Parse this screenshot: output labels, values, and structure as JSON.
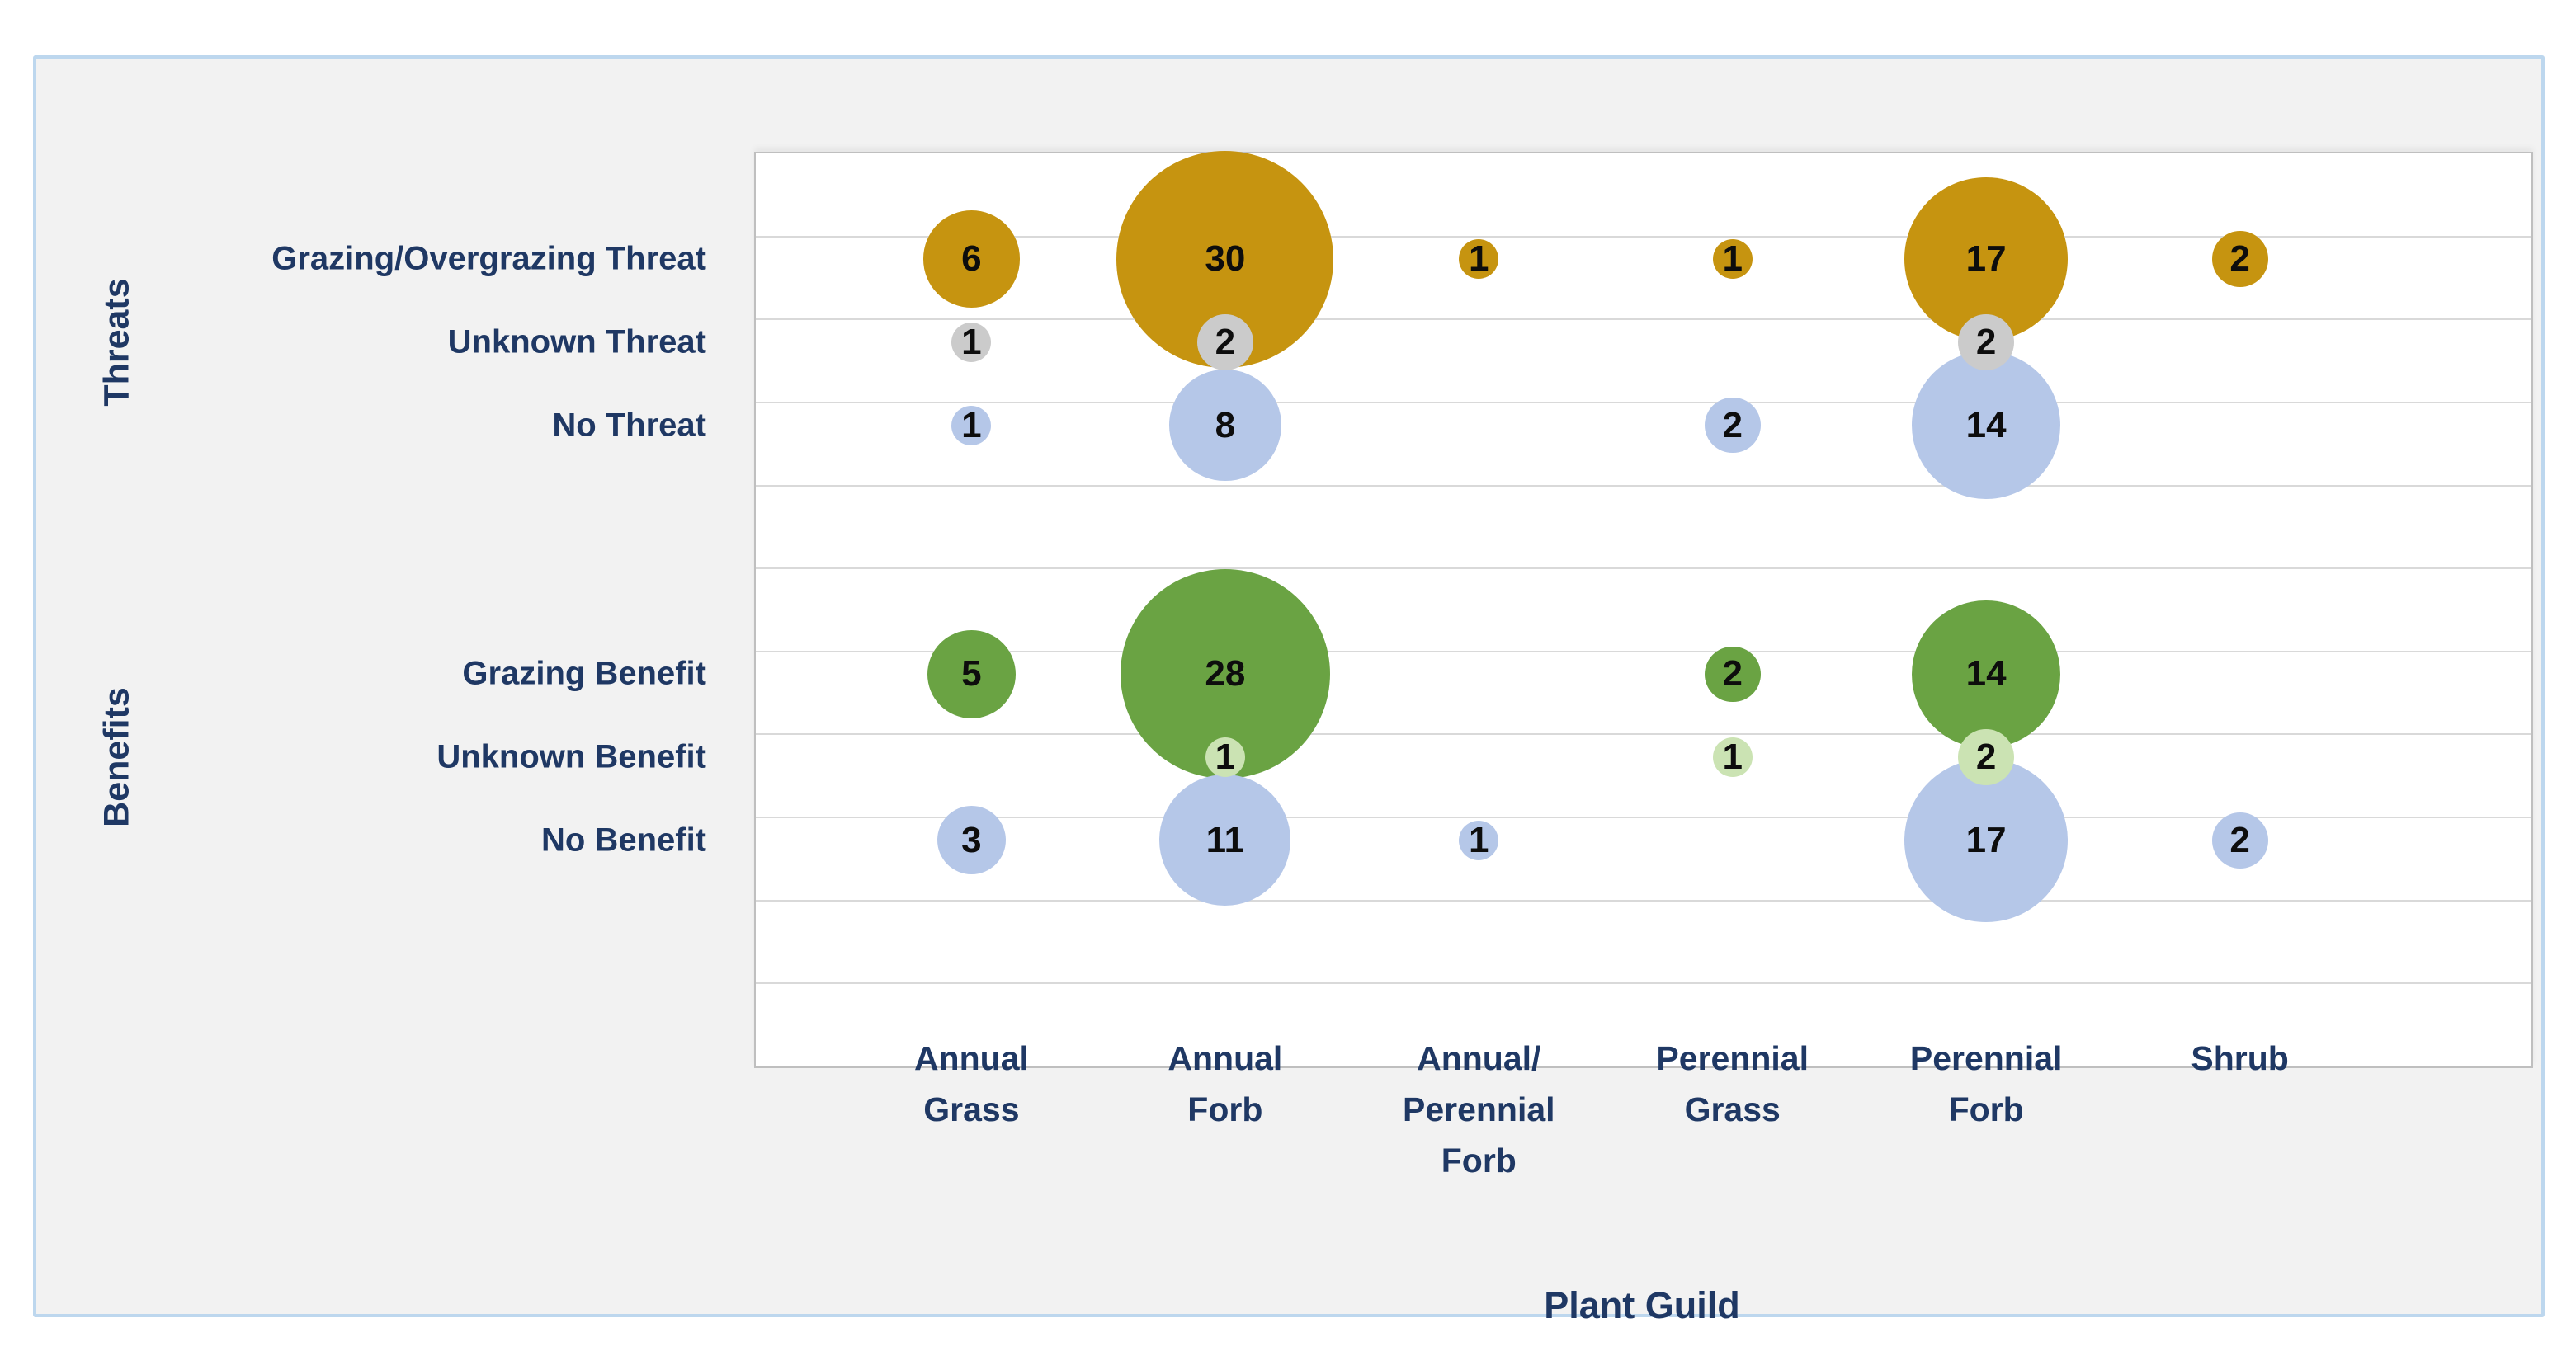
{
  "chart_data": {
    "type": "bubble",
    "xlabel": "Plant Guild",
    "x_categories": [
      "Annual Grass",
      "Annual Forb",
      "Annual/Perennial Forb",
      "Perennial Grass",
      "Perennial Forb",
      "Shrub"
    ],
    "x_category_display_lines": [
      [
        "Annual",
        "Grass"
      ],
      [
        "Annual",
        "Forb"
      ],
      [
        "Annual/",
        "Perennial",
        "Forb"
      ],
      [
        "Perennial",
        "Grass"
      ],
      [
        "Perennial",
        "Forb"
      ],
      [
        "Shrub"
      ]
    ],
    "y_axis_groups": [
      {
        "group_label": "Threats",
        "rows": [
          "Grazing/Overgrazing Threat",
          "Unknown Threat",
          "No Threat"
        ]
      },
      {
        "group_label": "Benefits",
        "rows": [
          "Grazing Benefit",
          "Unknown Benefit",
          "No Benefit"
        ]
      }
    ],
    "legend_position": "none",
    "grid": true,
    "bubble_sizing": "area proportional to count",
    "series": [
      {
        "name": "Grazing/Overgrazing Threat",
        "color": "#C69410",
        "values": [
          6,
          30,
          1,
          1,
          17,
          2
        ]
      },
      {
        "name": "Unknown Threat",
        "color": "#CBCBCB",
        "values": [
          1,
          2,
          null,
          null,
          2,
          null
        ]
      },
      {
        "name": "No Threat",
        "color": "#B5C7E8",
        "values": [
          1,
          8,
          null,
          2,
          14,
          null
        ]
      },
      {
        "name": "Grazing Benefit",
        "color": "#6AA343",
        "values": [
          5,
          28,
          null,
          2,
          14,
          null
        ]
      },
      {
        "name": "Unknown Benefit",
        "color": "#CBE3B3",
        "values": [
          null,
          1,
          null,
          1,
          2,
          null
        ]
      },
      {
        "name": "No Benefit",
        "color": "#B5C7E8",
        "values": [
          3,
          11,
          1,
          null,
          17,
          2
        ]
      }
    ]
  },
  "colors": {
    "page_bg": "#FFFFFF",
    "panel_bg": "#F2F2F2",
    "panel_border": "#BDD7EE",
    "plot_bg": "#FFFFFF",
    "plot_border": "#BFBFBF",
    "gridline": "#D9D9D9",
    "label_text": "#1F3864",
    "number_text": "#0D0D0D"
  }
}
